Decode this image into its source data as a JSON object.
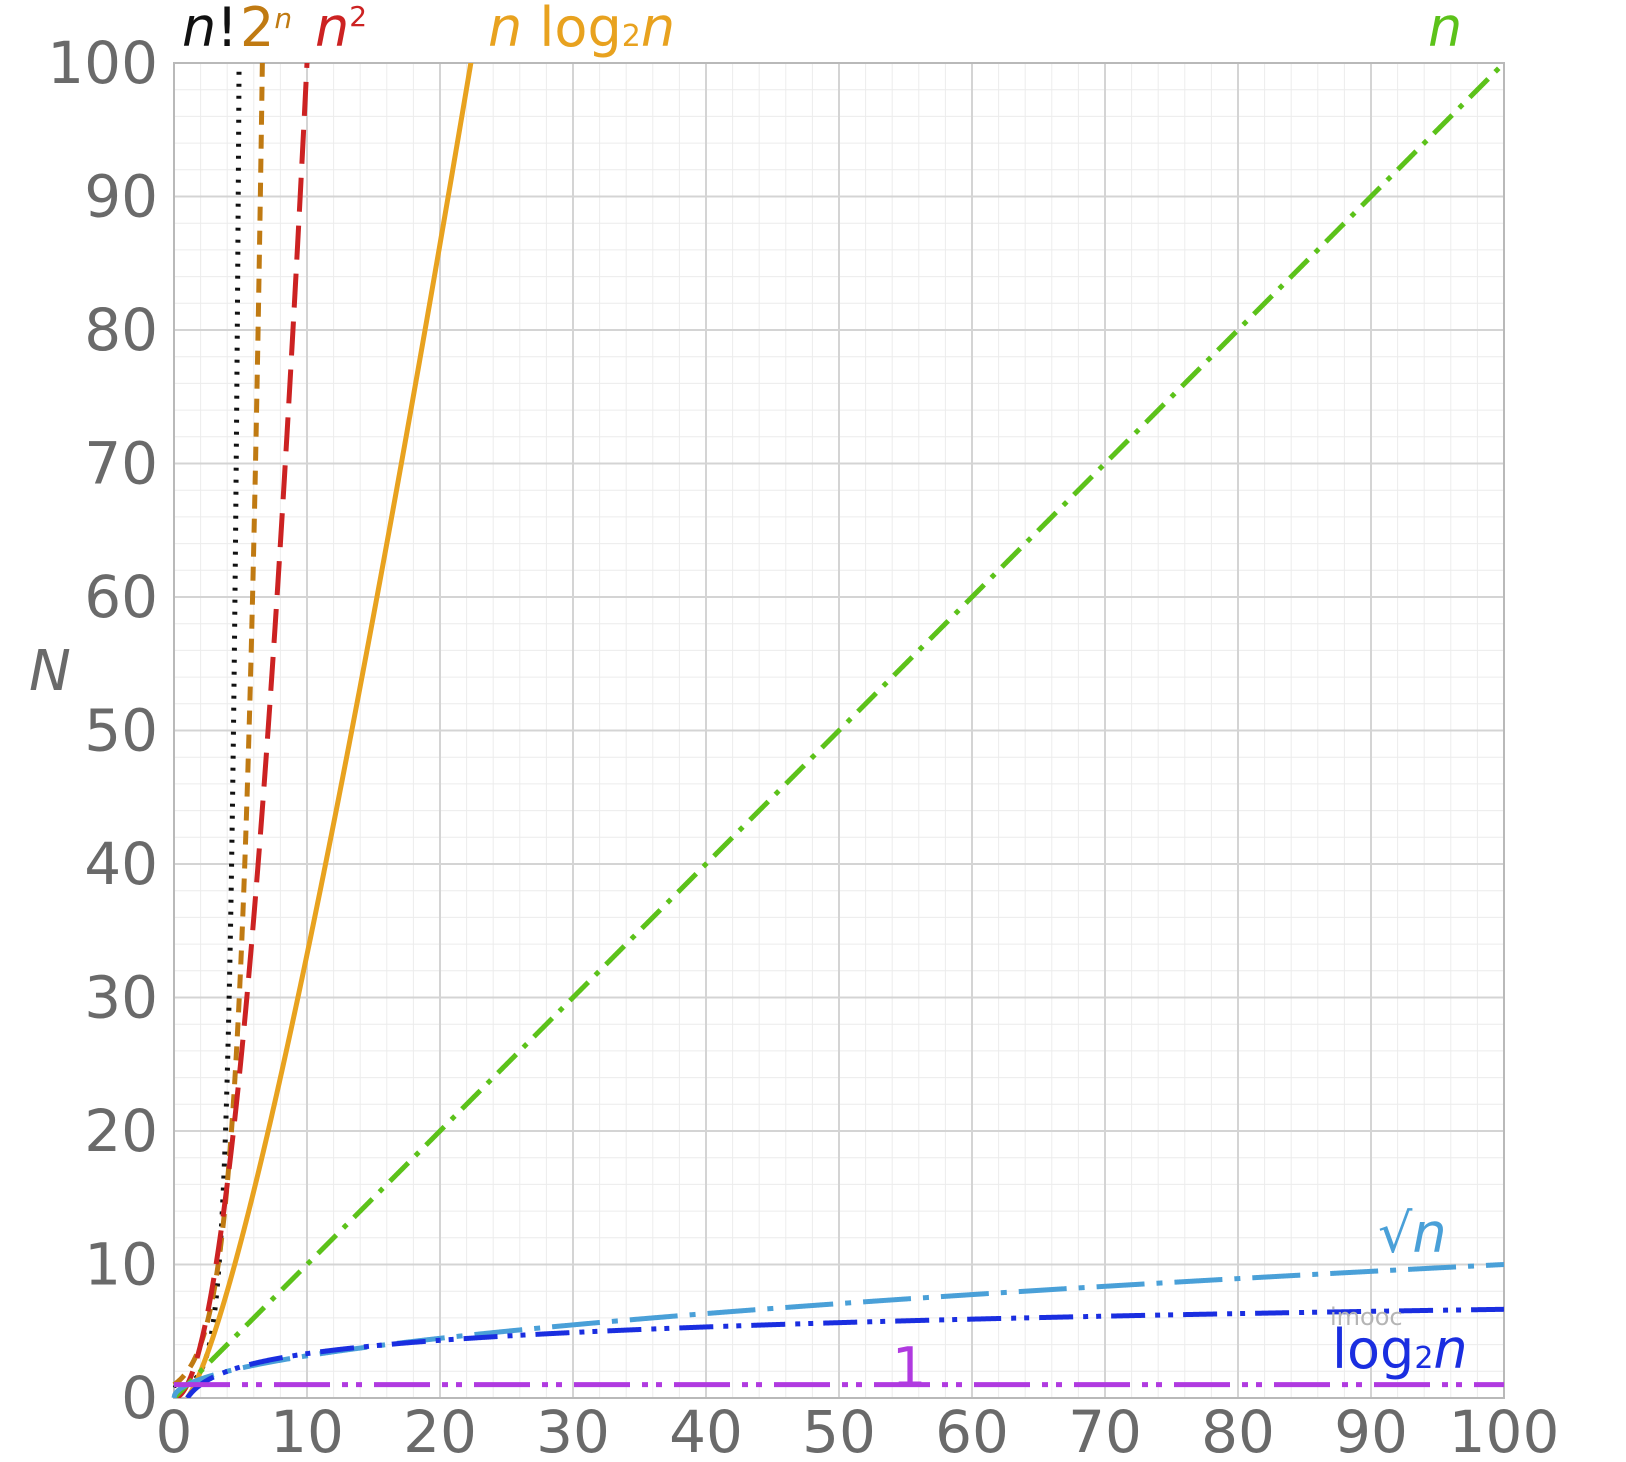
{
  "chart_data": {
    "type": "line",
    "title": "",
    "xlabel": "",
    "ylabel": "N",
    "xlim": [
      0,
      100
    ],
    "ylim": [
      0,
      100
    ],
    "grid": true,
    "x_ticks": [
      "0",
      "10",
      "20",
      "30",
      "40",
      "50",
      "60",
      "70",
      "80",
      "90",
      "100"
    ],
    "y_ticks": [
      "0",
      "10",
      "20",
      "30",
      "40",
      "50",
      "60",
      "70",
      "80",
      "90",
      "100"
    ],
    "series": [
      {
        "name": "n!",
        "function": "factorial",
        "color": "#111111",
        "dash": "dotted"
      },
      {
        "name": "2^n",
        "function": "exp2",
        "color": "#c07a12",
        "dash": "dashed"
      },
      {
        "name": "n^2",
        "function": "square",
        "color": "#cc2222",
        "dash": "long-dashed"
      },
      {
        "name": "n log₂ n",
        "function": "nlog2n",
        "color": "#e8a21f",
        "dash": "solid"
      },
      {
        "name": "n",
        "function": "linear",
        "color": "#5cc21a",
        "dash": "dash-dot"
      },
      {
        "name": "√n",
        "function": "sqrt",
        "color": "#4aa0d8",
        "dash": "long-dash-dot"
      },
      {
        "name": "log₂ n",
        "function": "log2",
        "color": "#1a2ee0",
        "dash": "dash-dot-dot"
      },
      {
        "name": "1",
        "function": "constant",
        "color": "#b03ae0",
        "dash": "long-dash-dot-dot"
      }
    ],
    "labels": {
      "factorial": {
        "base": "n",
        "suffix": "!"
      },
      "exp2": {
        "base": "2",
        "sup": "n"
      },
      "square": {
        "base": "n",
        "sup": "2"
      },
      "nlog2n": {
        "pre": "n",
        "mid": " log",
        "sub": "2",
        "post": "n"
      },
      "linear": {
        "base": "n"
      },
      "sqrt": {
        "sym": "√",
        "base": "n"
      },
      "log2": {
        "mid": "log",
        "sub": "2",
        "post": "n"
      },
      "constant": {
        "base": "1"
      }
    },
    "watermark": "imooc"
  }
}
